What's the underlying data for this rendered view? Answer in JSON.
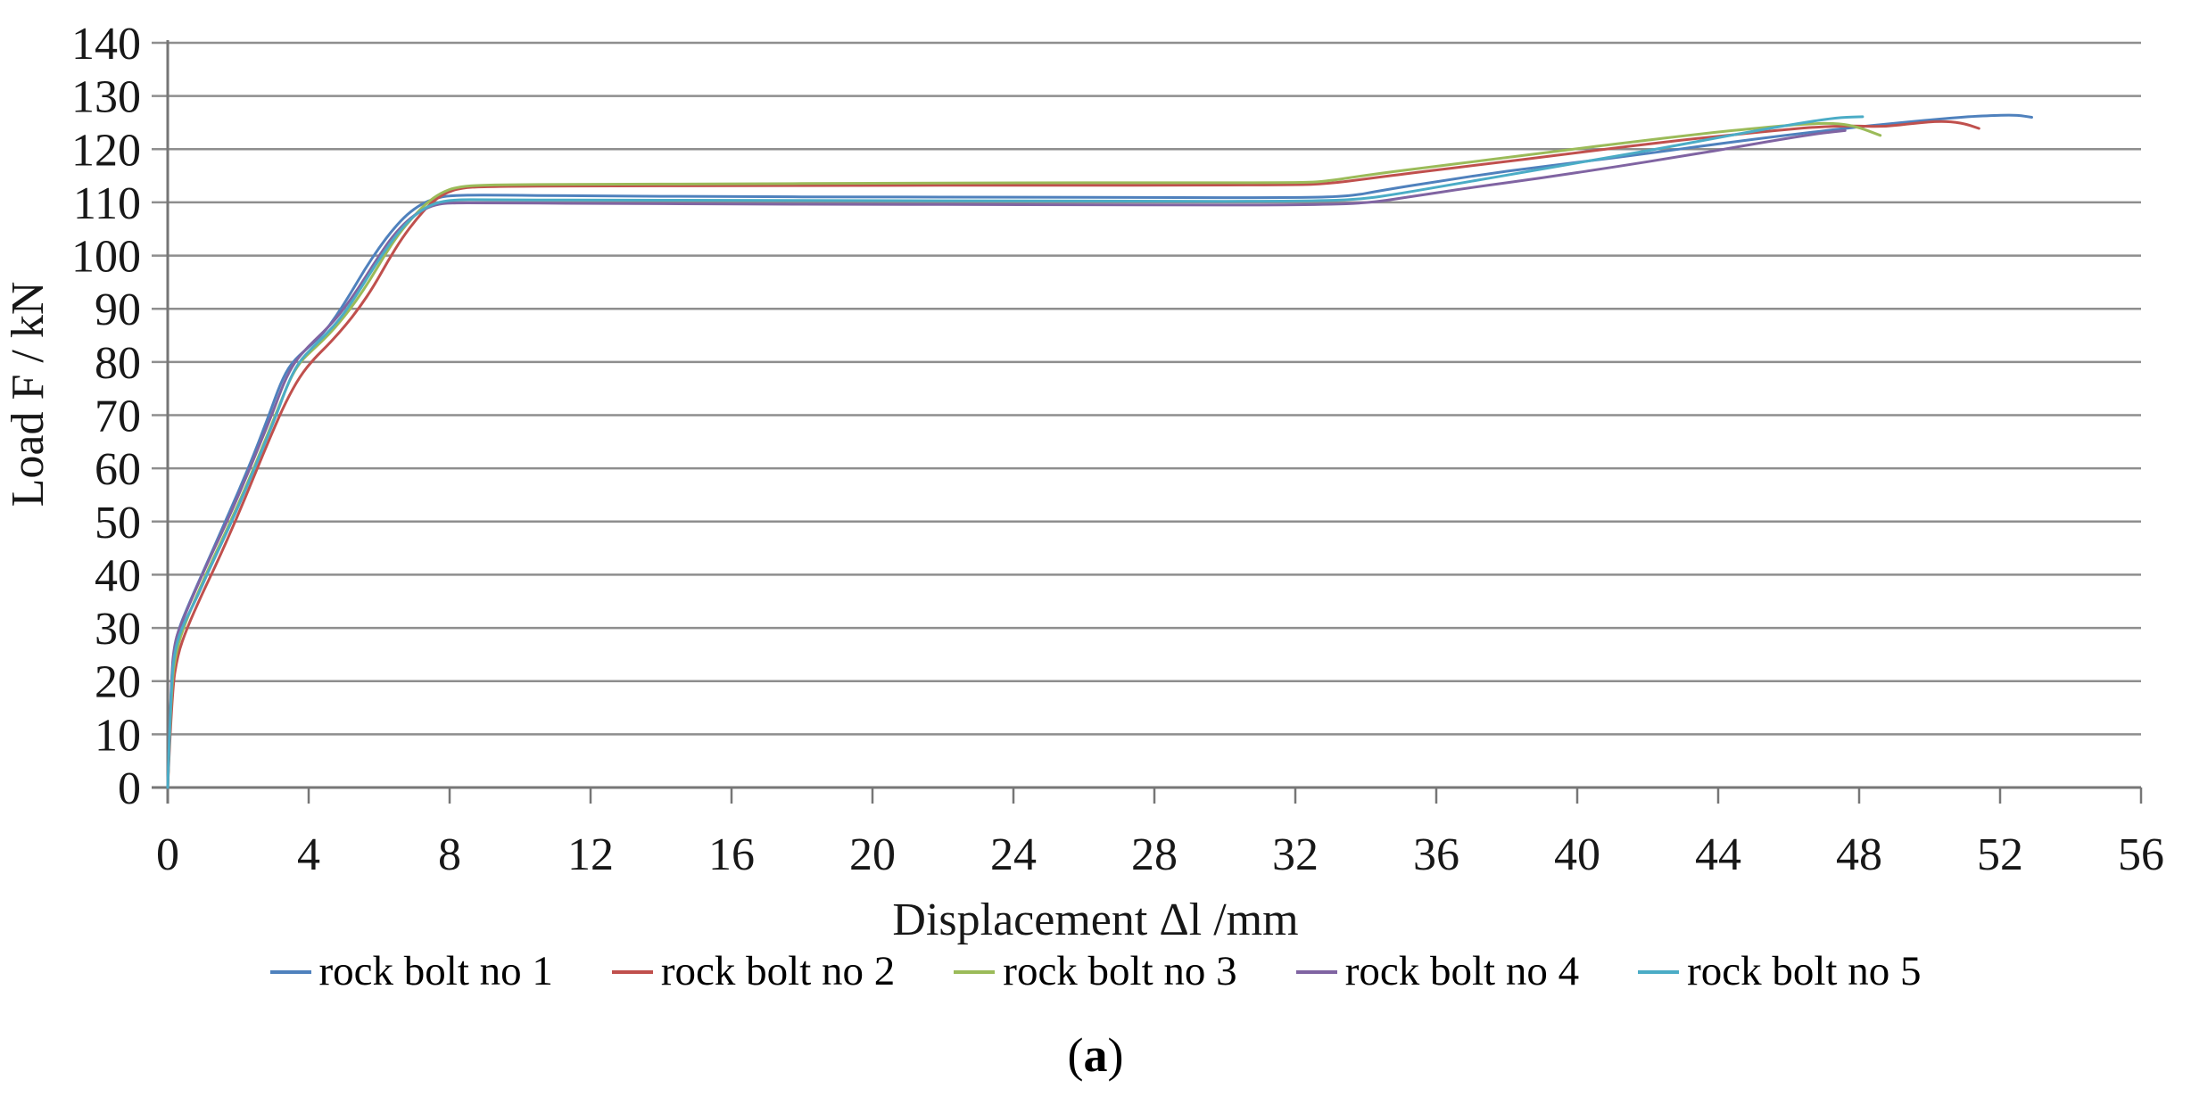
{
  "figure": {
    "caption_open": "(",
    "caption_letter": "a",
    "caption_close": ")"
  },
  "chart_data": {
    "type": "line",
    "title": "",
    "xlabel": "Displacement Δl /mm",
    "ylabel": "Load F / kN",
    "xlim": [
      0,
      56
    ],
    "ylim": [
      0,
      140
    ],
    "x_ticks": [
      0,
      4,
      8,
      12,
      16,
      20,
      24,
      28,
      32,
      36,
      40,
      44,
      48,
      52,
      56
    ],
    "y_ticks": [
      0,
      10,
      20,
      30,
      40,
      50,
      60,
      70,
      80,
      90,
      100,
      110,
      120,
      130,
      140
    ],
    "grid": "horizontal-only",
    "gridline_color": "#8e8e8e",
    "axis_color": "#767676",
    "legend_position": "bottom",
    "series": [
      {
        "name": "rock bolt no 1",
        "color": "#4F81BD",
        "points": [
          [
            0,
            0
          ],
          [
            0.1,
            20
          ],
          [
            0.2,
            27
          ],
          [
            0.35,
            30.5
          ],
          [
            0.6,
            34.5
          ],
          [
            1,
            40.5
          ],
          [
            1.5,
            48
          ],
          [
            2,
            55.5
          ],
          [
            2.5,
            63.5
          ],
          [
            2.9,
            70.5
          ],
          [
            3.2,
            76
          ],
          [
            3.5,
            79.8
          ],
          [
            4,
            82.8
          ],
          [
            4.4,
            85.2
          ],
          [
            4.8,
            88.8
          ],
          [
            5.2,
            93
          ],
          [
            5.6,
            97.5
          ],
          [
            6,
            101.5
          ],
          [
            6.4,
            105
          ],
          [
            6.8,
            107.8
          ],
          [
            7.2,
            109.7
          ],
          [
            7.6,
            110.8
          ],
          [
            8,
            111.3
          ],
          [
            9,
            111.4
          ],
          [
            12,
            111.2
          ],
          [
            16,
            111.1
          ],
          [
            20,
            111
          ],
          [
            24,
            111
          ],
          [
            28,
            110.9
          ],
          [
            32,
            110.9
          ],
          [
            33.5,
            111.1
          ],
          [
            34.5,
            112.3
          ],
          [
            36,
            113.9
          ],
          [
            38,
            115.9
          ],
          [
            40,
            117.5
          ],
          [
            42,
            119.2
          ],
          [
            44,
            121
          ],
          [
            46,
            122.7
          ],
          [
            48,
            124.2
          ],
          [
            49.5,
            125.2
          ],
          [
            51,
            126.1
          ],
          [
            52,
            126.4
          ],
          [
            52.5,
            126.4
          ],
          [
            52.9,
            126
          ]
        ]
      },
      {
        "name": "rock bolt no 2",
        "color": "#C0504D",
        "points": [
          [
            0,
            0
          ],
          [
            0.12,
            18
          ],
          [
            0.28,
            25
          ],
          [
            0.55,
            30
          ],
          [
            0.95,
            36
          ],
          [
            1.45,
            43
          ],
          [
            1.95,
            50.5
          ],
          [
            2.45,
            58.5
          ],
          [
            2.95,
            66.5
          ],
          [
            3.35,
            72.5
          ],
          [
            3.75,
            77.3
          ],
          [
            4.15,
            80.6
          ],
          [
            4.55,
            83.2
          ],
          [
            5,
            86.5
          ],
          [
            5.45,
            90.3
          ],
          [
            5.85,
            94.3
          ],
          [
            6.25,
            99
          ],
          [
            6.65,
            103.3
          ],
          [
            7.05,
            106.8
          ],
          [
            7.45,
            109.8
          ],
          [
            7.85,
            111.7
          ],
          [
            8.3,
            112.7
          ],
          [
            9,
            113
          ],
          [
            12,
            113.1
          ],
          [
            16,
            113.1
          ],
          [
            20,
            113.2
          ],
          [
            24,
            113.2
          ],
          [
            28,
            113.2
          ],
          [
            32,
            113.3
          ],
          [
            32.9,
            113.5
          ],
          [
            34,
            114.4
          ],
          [
            35.5,
            115.7
          ],
          [
            37.5,
            117.3
          ],
          [
            39.5,
            118.9
          ],
          [
            41.5,
            120.6
          ],
          [
            43.5,
            122.1
          ],
          [
            45.3,
            123.3
          ],
          [
            46.8,
            124.2
          ],
          [
            47.8,
            124.4
          ],
          [
            48.7,
            124.2
          ],
          [
            49.6,
            124.9
          ],
          [
            50.3,
            125.3
          ],
          [
            50.9,
            125
          ],
          [
            51.4,
            123.9
          ]
        ]
      },
      {
        "name": "rock bolt no 3",
        "color": "#9BBB59",
        "points": [
          [
            0,
            0
          ],
          [
            0.1,
            19
          ],
          [
            0.25,
            26
          ],
          [
            0.5,
            31
          ],
          [
            0.85,
            36.5
          ],
          [
            1.25,
            42.5
          ],
          [
            1.75,
            49.5
          ],
          [
            2.25,
            57
          ],
          [
            2.75,
            65
          ],
          [
            3.15,
            71.5
          ],
          [
            3.45,
            76.5
          ],
          [
            3.75,
            80
          ],
          [
            4.15,
            82.5
          ],
          [
            4.55,
            85
          ],
          [
            4.95,
            88
          ],
          [
            5.35,
            91.5
          ],
          [
            5.75,
            95.5
          ],
          [
            6.15,
            100
          ],
          [
            6.55,
            104
          ],
          [
            6.95,
            107.2
          ],
          [
            7.35,
            109.9
          ],
          [
            7.75,
            111.8
          ],
          [
            8.2,
            112.9
          ],
          [
            9,
            113.3
          ],
          [
            12,
            113.4
          ],
          [
            16,
            113.5
          ],
          [
            20,
            113.6
          ],
          [
            24,
            113.7
          ],
          [
            28,
            113.7
          ],
          [
            32,
            113.7
          ],
          [
            32.8,
            113.9
          ],
          [
            34,
            115.1
          ],
          [
            35.5,
            116.4
          ],
          [
            37.5,
            118
          ],
          [
            39.5,
            119.7
          ],
          [
            41.5,
            121.3
          ],
          [
            43.5,
            122.9
          ],
          [
            45.3,
            124.1
          ],
          [
            46.6,
            124.8
          ],
          [
            47.4,
            124.9
          ],
          [
            48,
            124.1
          ],
          [
            48.6,
            122.6
          ]
        ]
      },
      {
        "name": "rock bolt no 4",
        "color": "#8064A2",
        "points": [
          [
            0,
            0
          ],
          [
            0.1,
            21
          ],
          [
            0.2,
            27.5
          ],
          [
            0.4,
            31
          ],
          [
            0.7,
            35.8
          ],
          [
            1.1,
            41.8
          ],
          [
            1.6,
            48.8
          ],
          [
            2.1,
            56.3
          ],
          [
            2.6,
            64.3
          ],
          [
            3,
            70.8
          ],
          [
            3.3,
            76.2
          ],
          [
            3.6,
            80
          ],
          [
            4,
            83
          ],
          [
            4.4,
            85.5
          ],
          [
            4.8,
            88.3
          ],
          [
            5.2,
            91.8
          ],
          [
            5.6,
            95.8
          ],
          [
            6,
            100
          ],
          [
            6.4,
            103.8
          ],
          [
            6.8,
            106.6
          ],
          [
            7.2,
            108.5
          ],
          [
            7.6,
            109.6
          ],
          [
            8,
            109.9
          ],
          [
            9,
            109.9
          ],
          [
            12,
            109.8
          ],
          [
            16,
            109.7
          ],
          [
            20,
            109.6
          ],
          [
            24,
            109.6
          ],
          [
            28,
            109.5
          ],
          [
            32,
            109.5
          ],
          [
            34,
            109.8
          ],
          [
            35.2,
            111
          ],
          [
            37,
            112.8
          ],
          [
            39,
            114.6
          ],
          [
            41,
            116.6
          ],
          [
            43,
            118.7
          ],
          [
            44.8,
            120.7
          ],
          [
            46,
            122.1
          ],
          [
            46.9,
            123
          ],
          [
            47.6,
            123.5
          ]
        ]
      },
      {
        "name": "rock bolt no 5",
        "color": "#4BACC6",
        "points": [
          [
            0,
            0
          ],
          [
            0.1,
            20
          ],
          [
            0.22,
            26.5
          ],
          [
            0.45,
            30.8
          ],
          [
            0.8,
            35.3
          ],
          [
            1.2,
            41.3
          ],
          [
            1.7,
            48.3
          ],
          [
            2.2,
            55.8
          ],
          [
            2.7,
            63.8
          ],
          [
            3.1,
            70.3
          ],
          [
            3.4,
            75.8
          ],
          [
            3.7,
            79.8
          ],
          [
            4.1,
            82.7
          ],
          [
            4.5,
            85.2
          ],
          [
            4.9,
            88.2
          ],
          [
            5.3,
            92
          ],
          [
            5.7,
            96.2
          ],
          [
            6.1,
            100.3
          ],
          [
            6.5,
            104
          ],
          [
            6.9,
            107
          ],
          [
            7.3,
            109
          ],
          [
            7.7,
            110.1
          ],
          [
            8.2,
            110.5
          ],
          [
            9,
            110.5
          ],
          [
            12,
            110.4
          ],
          [
            16,
            110.4
          ],
          [
            20,
            110.3
          ],
          [
            24,
            110.3
          ],
          [
            28,
            110.2
          ],
          [
            32,
            110.2
          ],
          [
            33.8,
            110.5
          ],
          [
            35,
            111.7
          ],
          [
            36.5,
            113.4
          ],
          [
            38.5,
            115.7
          ],
          [
            40.5,
            118
          ],
          [
            42.5,
            120.3
          ],
          [
            44.5,
            122.8
          ],
          [
            45.8,
            124.3
          ],
          [
            46.8,
            125.4
          ],
          [
            47.5,
            126
          ],
          [
            48.1,
            126.1
          ]
        ]
      }
    ]
  }
}
